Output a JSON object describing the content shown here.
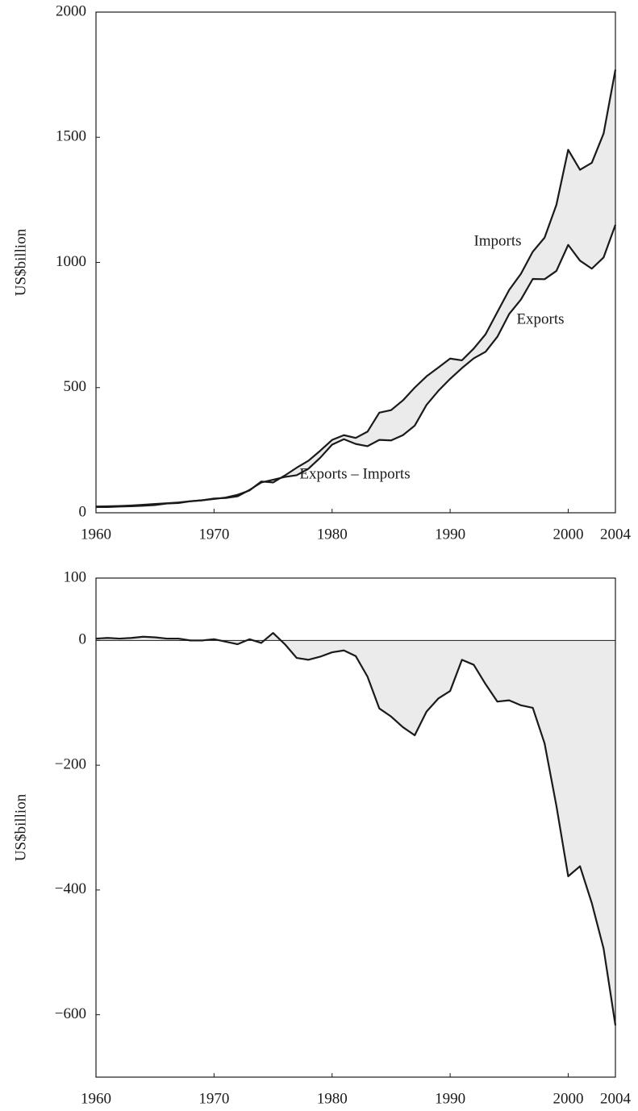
{
  "chart_data": [
    {
      "type": "line",
      "ylabel": "US$billion",
      "x": [
        1960,
        1961,
        1962,
        1963,
        1964,
        1965,
        1966,
        1967,
        1968,
        1969,
        1970,
        1971,
        1972,
        1973,
        1974,
        1975,
        1976,
        1977,
        1978,
        1979,
        1980,
        1981,
        1982,
        1983,
        1984,
        1985,
        1986,
        1987,
        1988,
        1989,
        1990,
        1991,
        1992,
        1993,
        1994,
        1995,
        1996,
        1997,
        1998,
        1999,
        2000,
        2001,
        2002,
        2003,
        2004
      ],
      "xlim": [
        1960,
        2004
      ],
      "xticks": [
        1960,
        1970,
        1980,
        1990,
        2000,
        2004
      ],
      "ylim": [
        0,
        2000
      ],
      "yticks": [
        0,
        500,
        1000,
        1500,
        2000
      ],
      "fill_color": "#ebebeb",
      "series": [
        {
          "name": "Imports",
          "color": "#1a1a1a",
          "values": [
            23,
            23,
            25,
            26,
            28,
            31,
            37,
            39,
            46,
            50,
            55,
            61,
            72,
            89,
            125,
            121,
            149,
            180,
            208,
            248,
            291,
            310,
            299,
            324,
            400,
            410,
            449,
            500,
            545,
            580,
            616,
            609,
            656,
            713,
            802,
            890,
            955,
            1043,
            1099,
            1230,
            1450,
            1370,
            1398,
            1515,
            1770
          ]
        },
        {
          "name": "Exports",
          "color": "#1a1a1a",
          "values": [
            25,
            26,
            27,
            29,
            32,
            35,
            38,
            41,
            46,
            50,
            57,
            59,
            66,
            91,
            121,
            132,
            143,
            150,
            176,
            220,
            272,
            294,
            275,
            266,
            291,
            289,
            310,
            348,
            431,
            487,
            535,
            578,
            617,
            643,
            703,
            794,
            852,
            934,
            933,
            966,
            1070,
            1007,
            975,
            1020,
            1150
          ]
        }
      ]
    },
    {
      "type": "line",
      "ylabel": "US$billion",
      "x": [
        1960,
        1961,
        1962,
        1963,
        1964,
        1965,
        1966,
        1967,
        1968,
        1969,
        1970,
        1971,
        1972,
        1973,
        1974,
        1975,
        1976,
        1977,
        1978,
        1979,
        1980,
        1981,
        1982,
        1983,
        1984,
        1985,
        1986,
        1987,
        1988,
        1989,
        1990,
        1991,
        1992,
        1993,
        1994,
        1995,
        1996,
        1997,
        1998,
        1999,
        2000,
        2001,
        2002,
        2003,
        2004
      ],
      "xlim": [
        1960,
        2004
      ],
      "xticks": [
        1960,
        1970,
        1980,
        1990,
        2000,
        2004
      ],
      "ylim": [
        -700,
        100
      ],
      "yticks": [
        100,
        0,
        {
          "value": -200,
          "label": "−200"
        },
        {
          "value": -400,
          "label": "−400"
        },
        {
          "value": -600,
          "label": "−600"
        }
      ],
      "fill_color": "#ebebeb",
      "series": [
        {
          "name": "Exports – Imports",
          "color": "#1a1a1a",
          "values": [
            3,
            4,
            3,
            4,
            6,
            5,
            3,
            3,
            0,
            0,
            2,
            -2,
            -6,
            2,
            -4,
            12,
            -6,
            -28,
            -31,
            -26,
            -19,
            -16,
            -25,
            -58,
            -109,
            -122,
            -139,
            -152,
            -114,
            -93,
            -81,
            -31,
            -39,
            -70,
            -98,
            -96,
            -104,
            -108,
            -165,
            -265,
            -378,
            -362,
            -421,
            -494,
            -617
          ]
        }
      ]
    }
  ]
}
